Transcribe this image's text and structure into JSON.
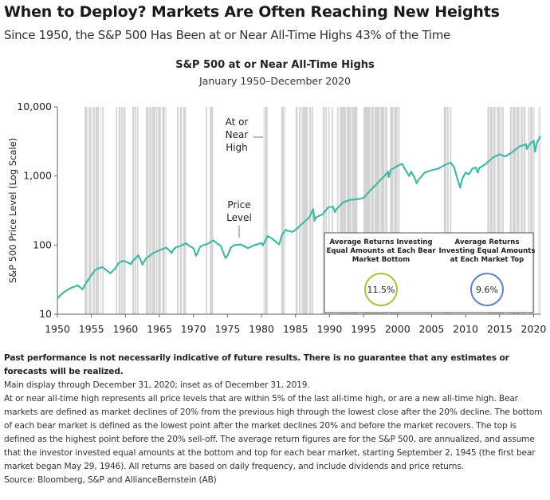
{
  "header": {
    "title": "When to Deploy? Markets Are Often Reaching New Heights",
    "subtitle": "Since 1950, the S&P 500 Has Been at or Near All-Time Highs 43% of the Time"
  },
  "colors": {
    "line": "#43b9a5",
    "shading": "#d3d3d3",
    "circle_bottom": "#a8c23a",
    "circle_top": "#5a86c0",
    "text": "#222222"
  },
  "chart_data": {
    "type": "line",
    "title": "S&P 500 at or Near All-Time Highs",
    "subtitle": "January 1950–December 2020",
    "ylabel": "S&P 500 Price Level (Log Scale)",
    "xlabel": "",
    "y_scale": "log",
    "ylim": [
      10,
      10000
    ],
    "xlim": [
      1950,
      2021
    ],
    "yticks": [
      {
        "value": 10,
        "label": "10"
      },
      {
        "value": 100,
        "label": "100"
      },
      {
        "value": 1000,
        "label": "1,000"
      },
      {
        "value": 10000,
        "label": "10,000"
      }
    ],
    "xticks": [
      "1950",
      "1955",
      "1960",
      "1965",
      "1970",
      "1975",
      "1980",
      "1985",
      "1990",
      "1995",
      "2000",
      "2005",
      "2010",
      "2015",
      "2020"
    ],
    "grid": false,
    "series": [
      {
        "name": "Price Level",
        "points": [
          [
            1950.0,
            17
          ],
          [
            1950.5,
            19
          ],
          [
            1951.0,
            21
          ],
          [
            1952.0,
            24
          ],
          [
            1952.5,
            25
          ],
          [
            1953.0,
            26
          ],
          [
            1953.7,
            23
          ],
          [
            1954.0,
            26
          ],
          [
            1954.5,
            31
          ],
          [
            1955.0,
            37
          ],
          [
            1955.5,
            43
          ],
          [
            1956.0,
            46
          ],
          [
            1956.6,
            48
          ],
          [
            1957.0,
            45
          ],
          [
            1957.8,
            39
          ],
          [
            1958.0,
            41
          ],
          [
            1958.5,
            46
          ],
          [
            1959.0,
            55
          ],
          [
            1959.6,
            59
          ],
          [
            1960.0,
            58
          ],
          [
            1960.8,
            53
          ],
          [
            1961.0,
            58
          ],
          [
            1961.9,
            71
          ],
          [
            1962.4,
            56
          ],
          [
            1962.5,
            52
          ],
          [
            1963.0,
            64
          ],
          [
            1963.5,
            69
          ],
          [
            1964.0,
            76
          ],
          [
            1965.0,
            84
          ],
          [
            1966.0,
            92
          ],
          [
            1966.8,
            77
          ],
          [
            1967.0,
            85
          ],
          [
            1967.5,
            94
          ],
          [
            1968.0,
            96
          ],
          [
            1968.9,
            106
          ],
          [
            1969.5,
            96
          ],
          [
            1970.0,
            90
          ],
          [
            1970.4,
            70
          ],
          [
            1971.0,
            95
          ],
          [
            1971.5,
            100
          ],
          [
            1972.0,
            103
          ],
          [
            1972.9,
            117
          ],
          [
            1973.5,
            105
          ],
          [
            1974.0,
            98
          ],
          [
            1974.7,
            65
          ],
          [
            1975.0,
            70
          ],
          [
            1975.5,
            92
          ],
          [
            1976.0,
            100
          ],
          [
            1977.0,
            102
          ],
          [
            1978.0,
            90
          ],
          [
            1979.0,
            100
          ],
          [
            1980.0,
            107
          ],
          [
            1980.2,
            99
          ],
          [
            1980.9,
            135
          ],
          [
            1981.5,
            125
          ],
          [
            1982.5,
            104
          ],
          [
            1982.6,
            102
          ],
          [
            1983.0,
            140
          ],
          [
            1983.5,
            165
          ],
          [
            1984.0,
            160
          ],
          [
            1984.5,
            155
          ],
          [
            1985.0,
            165
          ],
          [
            1986.0,
            205
          ],
          [
            1987.0,
            250
          ],
          [
            1987.6,
            330
          ],
          [
            1987.8,
            225
          ],
          [
            1988.0,
            250
          ],
          [
            1989.0,
            280
          ],
          [
            1989.8,
            350
          ],
          [
            1990.5,
            360
          ],
          [
            1990.8,
            300
          ],
          [
            1991.0,
            330
          ],
          [
            1992.0,
            415
          ],
          [
            1993.0,
            450
          ],
          [
            1994.0,
            460
          ],
          [
            1995.0,
            480
          ],
          [
            1996.0,
            620
          ],
          [
            1997.0,
            780
          ],
          [
            1998.0,
            980
          ],
          [
            1998.6,
            1150
          ],
          [
            1998.7,
            960
          ],
          [
            1999.0,
            1230
          ],
          [
            2000.0,
            1400
          ],
          [
            2000.7,
            1500
          ],
          [
            2001.0,
            1300
          ],
          [
            2001.7,
            1000
          ],
          [
            2002.0,
            1150
          ],
          [
            2002.5,
            950
          ],
          [
            2002.8,
            780
          ],
          [
            2003.0,
            860
          ],
          [
            2004.0,
            1120
          ],
          [
            2005.0,
            1210
          ],
          [
            2006.0,
            1280
          ],
          [
            2007.0,
            1450
          ],
          [
            2007.8,
            1560
          ],
          [
            2008.3,
            1350
          ],
          [
            2008.8,
            900
          ],
          [
            2009.2,
            680
          ],
          [
            2009.5,
            900
          ],
          [
            2010.0,
            1120
          ],
          [
            2010.5,
            1060
          ],
          [
            2011.0,
            1280
          ],
          [
            2011.5,
            1320
          ],
          [
            2011.8,
            1120
          ],
          [
            2012.0,
            1300
          ],
          [
            2013.0,
            1500
          ],
          [
            2014.0,
            1850
          ],
          [
            2015.0,
            2060
          ],
          [
            2015.7,
            1920
          ],
          [
            2016.0,
            1950
          ],
          [
            2017.0,
            2270
          ],
          [
            2018.0,
            2700
          ],
          [
            2018.9,
            2880
          ],
          [
            2019.0,
            2450
          ],
          [
            2019.5,
            2950
          ],
          [
            2020.0,
            3230
          ],
          [
            2020.2,
            2240
          ],
          [
            2020.5,
            3050
          ],
          [
            2020.99,
            3756
          ]
        ]
      }
    ],
    "near_high_periods": [
      [
        1954.0,
        1954.4
      ],
      [
        1954.6,
        1955.0
      ],
      [
        1955.2,
        1955.5
      ],
      [
        1955.6,
        1956.1
      ],
      [
        1956.3,
        1956.4
      ],
      [
        1956.6,
        1956.8
      ],
      [
        1958.6,
        1958.8
      ],
      [
        1959.0,
        1959.3
      ],
      [
        1959.4,
        1959.6
      ],
      [
        1959.7,
        1960.0
      ],
      [
        1961.0,
        1961.3
      ],
      [
        1961.4,
        1961.6
      ],
      [
        1961.7,
        1961.9
      ],
      [
        1963.0,
        1963.4
      ],
      [
        1963.5,
        1963.8
      ],
      [
        1963.9,
        1964.4
      ],
      [
        1964.5,
        1964.7
      ],
      [
        1964.8,
        1965.2
      ],
      [
        1965.4,
        1965.8
      ],
      [
        1965.9,
        1966.0
      ],
      [
        1967.6,
        1967.8
      ],
      [
        1968.0,
        1968.3
      ],
      [
        1968.5,
        1968.9
      ],
      [
        1971.8,
        1972.0
      ],
      [
        1972.4,
        1972.9
      ],
      [
        1980.3,
        1980.4
      ],
      [
        1980.5,
        1980.9
      ],
      [
        1982.9,
        1983.3
      ],
      [
        1983.4,
        1983.5
      ],
      [
        1985.0,
        1985.3
      ],
      [
        1985.5,
        1985.7
      ],
      [
        1985.8,
        1985.9
      ],
      [
        1986.0,
        1986.8
      ],
      [
        1987.0,
        1987.3
      ],
      [
        1987.4,
        1987.6
      ],
      [
        1989.0,
        1989.3
      ],
      [
        1989.4,
        1989.6
      ],
      [
        1989.8,
        1990.0
      ],
      [
        1990.3,
        1990.5
      ],
      [
        1991.1,
        1991.3
      ],
      [
        1991.5,
        1992.4
      ],
      [
        1992.5,
        1993.2
      ],
      [
        1993.3,
        1994.1
      ],
      [
        1995.0,
        1996.0
      ],
      [
        1996.1,
        1996.5
      ],
      [
        1996.6,
        1997.4
      ],
      [
        1997.5,
        1998.1
      ],
      [
        1998.2,
        1998.5
      ],
      [
        1998.9,
        1999.4
      ],
      [
        1999.5,
        2000.0
      ],
      [
        2000.1,
        2000.3
      ],
      [
        2006.8,
        2007.2
      ],
      [
        2007.3,
        2007.5
      ],
      [
        2007.7,
        2007.9
      ],
      [
        2013.2,
        2013.5
      ],
      [
        2013.6,
        2014.0
      ],
      [
        2014.1,
        2014.4
      ],
      [
        2014.6,
        2015.0
      ],
      [
        2015.1,
        2015.3
      ],
      [
        2015.4,
        2015.6
      ],
      [
        2016.5,
        2016.8
      ],
      [
        2016.9,
        2017.4
      ],
      [
        2017.5,
        2017.9
      ],
      [
        2018.1,
        2018.4
      ],
      [
        2018.5,
        2018.8
      ],
      [
        2019.2,
        2019.4
      ],
      [
        2019.5,
        2019.9
      ],
      [
        2020.0,
        2020.1
      ],
      [
        2020.7,
        2020.8
      ],
      [
        2020.9,
        2021.0
      ]
    ],
    "annotations": {
      "shaded_label": [
        "At or",
        "Near",
        "High"
      ],
      "line_label": [
        "Price",
        "Level"
      ]
    },
    "inset": {
      "left": {
        "label": [
          "Average Returns Investing",
          "Equal Amounts at Each Bear",
          "Market Bottom"
        ],
        "value": "11.5%"
      },
      "right": {
        "label": [
          "Average Returns",
          "Investing Equal Amounts",
          "at Each Market Top"
        ],
        "value": "9.6%"
      }
    }
  },
  "notes": {
    "disclaimer": "Past performance is not necessarily indicative of future results. There is no guarantee that any estimates or forecasts will be realized.",
    "display_note": "Main display through December 31, 2020; inset as of December 31, 2019.",
    "definition": "At or near all-time high represents all price levels that are within 5% of the last all-time high, or are a new all-time high. Bear markets are defined as market declines of 20% from the previous high through the lowest close after the 20% decline. The bottom of each bear market is defined as the lowest point after the market declines 20% and before the market recovers. The top is defined as the highest point before the 20% sell-off. The average return figures are for the S&P 500, are annualized, and assume that the investor invested equal amounts at the bottom and top for each bear market, starting September 2, 1945 (the first bear market began May 29, 1946). All returns are based on daily frequency, and include dividends and price returns.",
    "source": "Source: Bloomberg, S&P and AllianceBernstein (AB)"
  }
}
